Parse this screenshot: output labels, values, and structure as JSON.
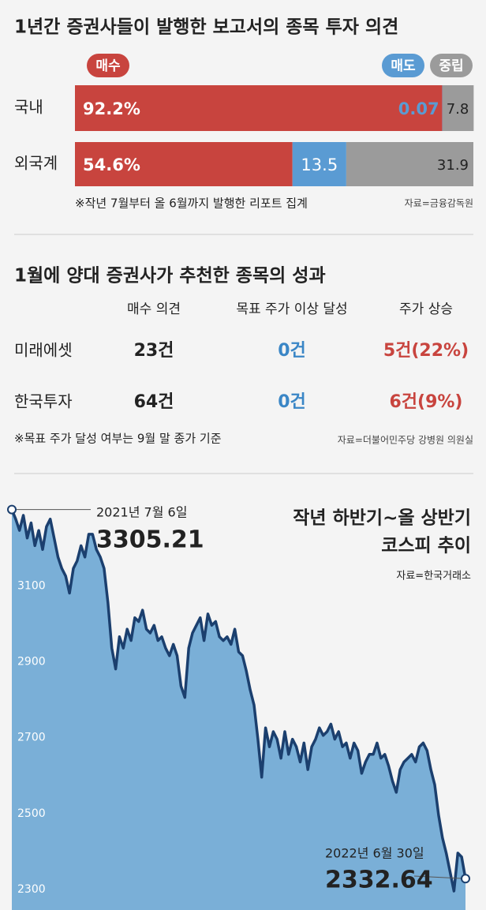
{
  "chart_data": [
    {
      "type": "stacked-bar-horizontal",
      "title": "1년간 증권사들이 발행한 보고서의 종목 투자 의견",
      "categories": [
        "국내",
        "외국계"
      ],
      "series": [
        {
          "name": "매수",
          "color": "#c8443e",
          "values": [
            92.2,
            54.6
          ],
          "value_labels": [
            "92.2%",
            "54.6%"
          ]
        },
        {
          "name": "매도",
          "color": "#5a9bd3",
          "values": [
            0.07,
            13.5
          ]
        },
        {
          "name": "중립",
          "color": "#9b9b9b",
          "values": [
            7.8,
            31.9
          ]
        }
      ],
      "note": "※작년 7월부터 올 6월까지 발행한 리포트 집계",
      "source": "자료=금융감독원"
    },
    {
      "type": "area-line",
      "title": [
        "작년 하반기~올 상반기",
        "코스피 추이"
      ],
      "source": "자료=한국거래소",
      "color": "#1b3f6e",
      "fill": "#7aafd7",
      "ylim": [
        2250,
        3400
      ],
      "yticks": [
        2300,
        2500,
        2700,
        2900,
        3100
      ],
      "annotations": [
        "2021년 7월 6일",
        "2022년 6월 30일"
      ],
      "values": [
        3305.21,
        3280,
        3250,
        3290,
        3230,
        3270,
        3210,
        3250,
        3200,
        3260,
        3280,
        3230,
        3180,
        3150,
        3130,
        3085,
        3150,
        3170,
        3210,
        3180,
        3240,
        3240,
        3200,
        3180,
        3150,
        3060,
        2940,
        2885,
        2970,
        2940,
        2990,
        2960,
        3020,
        3010,
        3040,
        2990,
        2980,
        3000,
        2960,
        2970,
        2940,
        2920,
        2950,
        2920,
        2840,
        2810,
        2940,
        2980,
        3000,
        3020,
        2960,
        3030,
        3000,
        3010,
        2970,
        2960,
        2970,
        2950,
        2990,
        2930,
        2920,
        2880,
        2830,
        2790,
        2700,
        2600,
        2730,
        2680,
        2720,
        2700,
        2650,
        2720,
        2660,
        2700,
        2680,
        2640,
        2690,
        2620,
        2680,
        2700,
        2730,
        2710,
        2720,
        2740,
        2700,
        2720,
        2680,
        2690,
        2650,
        2690,
        2670,
        2610,
        2640,
        2660,
        2660,
        2690,
        2650,
        2660,
        2630,
        2590,
        2560,
        2620,
        2640,
        2650,
        2660,
        2640,
        2680,
        2690,
        2670,
        2620,
        2580,
        2500,
        2440,
        2400,
        2350,
        2300,
        2400,
        2390,
        2332.64
      ]
    }
  ],
  "table": {
    "title": "1월에  양대 증권사가 추천한 종목의 성과",
    "headers": [
      "매수 의견",
      "목표 주가 이상 달성",
      "주가 상승"
    ],
    "rows": [
      [
        "미래에셋",
        "23건",
        "0건",
        "5건(22%)"
      ],
      [
        "한국투자",
        "64건",
        "0건",
        "6건(9%)"
      ]
    ],
    "note": "※목표 주가 달성 여부는 9월 말 종가 기준",
    "source": "자료=더불어민주당 강병원 의원실"
  }
}
